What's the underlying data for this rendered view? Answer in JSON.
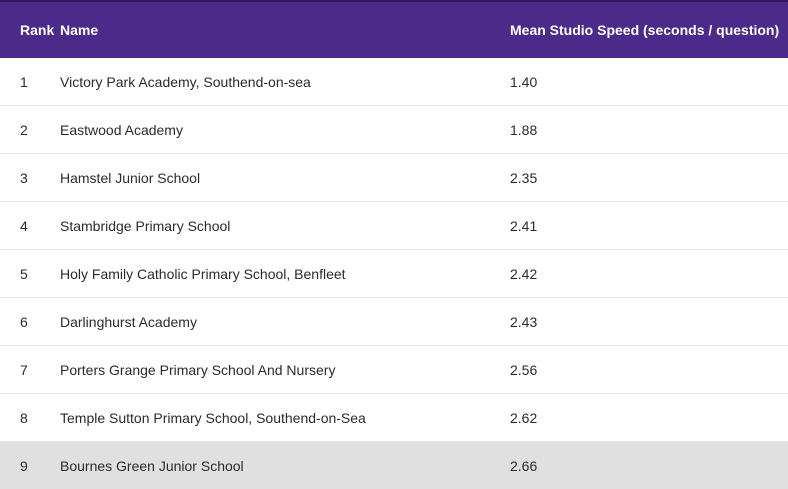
{
  "colors": {
    "header_bg": "#4b2a8a",
    "highlight_row_bg": "#e0e0e0"
  },
  "table": {
    "columns": {
      "rank": "Rank",
      "name": "Name",
      "speed": "Mean Studio Speed (seconds / question)"
    },
    "rows": [
      {
        "rank": "1",
        "name": "Victory Park Academy, Southend-on-sea",
        "speed": "1.40"
      },
      {
        "rank": "2",
        "name": "Eastwood Academy",
        "speed": "1.88"
      },
      {
        "rank": "3",
        "name": "Hamstel Junior School",
        "speed": "2.35"
      },
      {
        "rank": "4",
        "name": "Stambridge Primary School",
        "speed": "2.41"
      },
      {
        "rank": "5",
        "name": "Holy Family Catholic Primary School, Benfleet",
        "speed": "2.42"
      },
      {
        "rank": "6",
        "name": "Darlinghurst Academy",
        "speed": "2.43"
      },
      {
        "rank": "7",
        "name": "Porters Grange Primary School And Nursery",
        "speed": "2.56"
      },
      {
        "rank": "8",
        "name": "Temple Sutton Primary School, Southend-on-Sea",
        "speed": "2.62"
      },
      {
        "rank": "9",
        "name": "Bournes Green Junior School",
        "speed": "2.66"
      }
    ],
    "highlighted_row_rank": "9"
  }
}
